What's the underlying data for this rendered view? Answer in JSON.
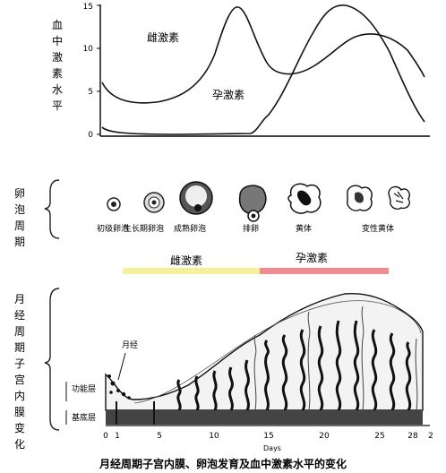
{
  "hormone_section": {
    "y_axis_label_chars": [
      "血",
      "中",
      "激",
      "素",
      "水",
      "平"
    ],
    "y_ticks": [
      "15",
      "10",
      "5",
      "0"
    ],
    "estrogen_label": "雌激素",
    "progesterone_label": "孕激素"
  },
  "ovary_section": {
    "label_chars": [
      "卵",
      "泡",
      "周",
      "期"
    ],
    "stages": [
      "初级卵泡",
      "生长期卵泡",
      "成熟卵泡",
      "排卵",
      "黄体",
      "变性黄体"
    ]
  },
  "phase_bars": {
    "estrogen_phase": "雌激素",
    "progesterone_phase": "孕激素",
    "estrogen_color": "#f4f19a",
    "progesterone_color": "#ef8b91"
  },
  "endometrium_section": {
    "label_chars": [
      "月",
      "经",
      "周",
      "期",
      "子",
      "宫",
      "内",
      "膜",
      "变",
      "化"
    ],
    "menstruation_label": "月经",
    "functional_layer": "功能层",
    "basal_layer": "基底层",
    "x_ticks": [
      "0",
      "1",
      "5",
      "10",
      "15",
      "20",
      "25",
      "28",
      "2"
    ],
    "x_axis_label": "Days"
  },
  "caption": "月经周期子宫内膜、卵泡发育及血中激素水平的变化"
}
